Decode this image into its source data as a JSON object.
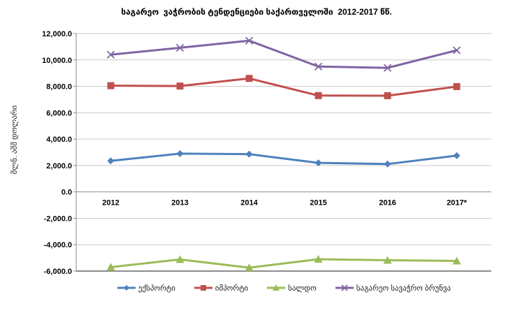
{
  "title": "საგარეო  ვაჭრობის ტენდენციები საქართველოში  2012-2017 წწ.",
  "chart_data": {
    "type": "line",
    "title": "საგარეო  ვაჭრობის ტენდენციები საქართველოში  2012-2017 წწ.",
    "categories": [
      "2012",
      "2013",
      "2014",
      "2015",
      "2016",
      "2017*"
    ],
    "series": [
      {
        "name": "ექსპორტი",
        "color": "#4F81BD",
        "marker": "diamond",
        "values": [
          2350,
          2900,
          2860,
          2200,
          2110,
          2750
        ]
      },
      {
        "name": "იმპორტი",
        "color": "#C0504D",
        "marker": "square",
        "values": [
          8050,
          8020,
          8600,
          7300,
          7290,
          7980
        ]
      },
      {
        "name": "სალდო",
        "color": "#9BBB59",
        "marker": "triangle",
        "values": [
          -5700,
          -5120,
          -5740,
          -5100,
          -5180,
          -5230
        ]
      },
      {
        "name": "საგარეო სავაჭრო ბრუნვა",
        "color": "#8064A2",
        "marker": "x",
        "values": [
          10400,
          10920,
          11460,
          9500,
          9400,
          10730
        ]
      }
    ],
    "xlabel": "",
    "ylabel": "მლნ. აშშ დოლარი",
    "ylim": [
      -6000,
      12000
    ],
    "ytick_step": 2000,
    "ytick_labels": [
      "12,000.0",
      "10,000.0",
      "8,000.0",
      "6,000.0",
      "4,000.0",
      "2,000.0",
      "0.0",
      "-2,000.0",
      "-4,000.0",
      "-6,000.0"
    ],
    "grid": true,
    "legend_position": "bottom"
  },
  "colors": {
    "gridline": "#C9C9C9",
    "axis": "#8C8C8C",
    "background": "#FFFFFF",
    "text": "#000000"
  }
}
